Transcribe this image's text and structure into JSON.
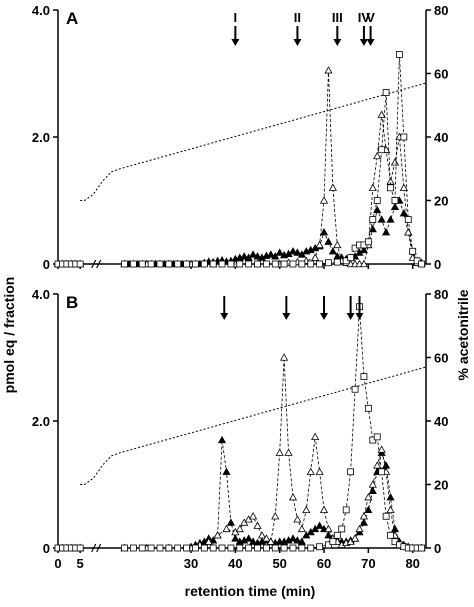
{
  "chart_data": {
    "type": "line",
    "xlabel": "retention time (min)",
    "ylabel_left": "pmol eq / fraction",
    "ylabel_right": "% acetonitrile",
    "x_ticks": [
      0,
      5,
      30,
      40,
      50,
      60,
      70,
      80
    ],
    "y_left_ticks": [
      0,
      2.0,
      4.0
    ],
    "y_left_tick_labels": [
      "0",
      "2.0",
      "4.0"
    ],
    "y_right_ticks": [
      0,
      20,
      40,
      60,
      80
    ],
    "xlim": [
      0,
      83
    ],
    "ylim_left": [
      0,
      4.0
    ],
    "ylim_right": [
      0,
      80
    ],
    "panels": [
      {
        "label": "A",
        "arrows": [
          {
            "x": 40,
            "label": "I"
          },
          {
            "x": 54,
            "label": "II"
          },
          {
            "x": 63,
            "label": "III"
          },
          {
            "x": 69,
            "label": "IV"
          },
          {
            "x": 70.5,
            "label": "V"
          }
        ],
        "series": [
          {
            "marker": "filled-triangle",
            "x": [
              0,
              1,
              2,
              3,
              4,
              5,
              15,
              16,
              17,
              18,
              19,
              20,
              21,
              22,
              23,
              24,
              25,
              26,
              27,
              28,
              29,
              30,
              31,
              32,
              33,
              34,
              35,
              36,
              37,
              38,
              39,
              40,
              41,
              42,
              43,
              44,
              45,
              46,
              47,
              48,
              49,
              50,
              51,
              52,
              53,
              54,
              55,
              56,
              57,
              58,
              59,
              60,
              61,
              62,
              63,
              64,
              65,
              66,
              67,
              68,
              69,
              70,
              71,
              72,
              73,
              74,
              75,
              76,
              77,
              78,
              79,
              80,
              81,
              82
            ],
            "y": [
              0,
              0,
              0,
              0,
              0,
              0,
              0,
              0,
              0,
              0,
              0,
              0,
              0,
              0,
              0,
              0,
              0,
              0,
              0,
              0,
              0,
              0,
              0,
              0,
              0.02,
              0.04,
              0.03,
              0.05,
              0.06,
              0.04,
              0.05,
              0.08,
              0.1,
              0.12,
              0.1,
              0.15,
              0.12,
              0.1,
              0.13,
              0.15,
              0.12,
              0.18,
              0.14,
              0.16,
              0.2,
              0.18,
              0.15,
              0.2,
              0.22,
              0.25,
              0.28,
              0.5,
              0.35,
              0.2,
              0.12,
              0.1,
              0.08,
              0.1,
              0.12,
              0.18,
              0.22,
              0.3,
              0.55,
              0.85,
              0.7,
              0.5,
              0.7,
              0.9,
              1.0,
              0.8,
              0.5,
              0.2,
              0.05,
              0.02
            ]
          },
          {
            "marker": "open-triangle",
            "x": [
              0,
              1,
              2,
              3,
              4,
              5,
              15,
              20,
              25,
              30,
              35,
              40,
              45,
              50,
              52,
              54,
              56,
              58,
              59,
              60,
              61,
              62,
              63,
              64,
              65,
              66,
              67,
              68,
              69,
              70,
              71,
              72,
              73,
              74,
              75,
              76,
              77,
              78,
              79,
              80,
              81,
              82
            ],
            "y": [
              0,
              0,
              0,
              0,
              0,
              0,
              0,
              0,
              0,
              0,
              0,
              0,
              0,
              0,
              0.02,
              0.03,
              0.05,
              0.1,
              0.3,
              1.0,
              3.05,
              1.2,
              0.3,
              0.05,
              0.02,
              0,
              0,
              0,
              0,
              0.3,
              1.2,
              1.7,
              2.35,
              1.8,
              1.3,
              1.6,
              2.0,
              1.2,
              0.5,
              0.1,
              0.02,
              0
            ]
          },
          {
            "marker": "open-square",
            "x": [
              0,
              1,
              2,
              3,
              4,
              5,
              15,
              17,
              19,
              21,
              23,
              25,
              27,
              29,
              31,
              33,
              35,
              37,
              39,
              41,
              43,
              45,
              47,
              49,
              51,
              53,
              55,
              57,
              59,
              61,
              63,
              65,
              66,
              67,
              68,
              69,
              70,
              71,
              72,
              73,
              74,
              75,
              76,
              77,
              78,
              79,
              80,
              81,
              82
            ],
            "y": [
              0,
              0,
              0,
              0,
              0,
              0,
              0,
              0,
              0,
              0,
              0,
              0,
              0,
              0,
              0,
              0,
              0,
              0,
              0,
              0,
              0,
              0,
              0,
              0,
              0,
              0,
              0,
              0,
              0,
              0.02,
              0.03,
              0.05,
              0.1,
              0.25,
              0.3,
              0.3,
              0.35,
              0.7,
              1.0,
              1.8,
              2.7,
              1.2,
              1.0,
              3.3,
              2.0,
              0.7,
              0.2,
              0.05,
              0
            ]
          }
        ]
      },
      {
        "label": "B",
        "arrows": [
          {
            "x": 37.5
          },
          {
            "x": 51.5
          },
          {
            "x": 60
          },
          {
            "x": 66
          },
          {
            "x": 68
          }
        ],
        "series": [
          {
            "marker": "filled-triangle",
            "x": [
              0,
              1,
              2,
              3,
              4,
              5,
              15,
              20,
              25,
              30,
              31,
              32,
              33,
              34,
              35,
              36,
              37,
              38,
              39,
              40,
              41,
              42,
              43,
              44,
              45,
              46,
              47,
              48,
              49,
              50,
              51,
              52,
              53,
              54,
              55,
              56,
              57,
              58,
              59,
              60,
              61,
              62,
              63,
              64,
              65,
              66,
              67,
              68,
              69,
              70,
              71,
              72,
              73,
              74,
              75,
              76,
              77,
              78,
              79,
              80,
              81,
              82
            ],
            "y": [
              0,
              0,
              0,
              0,
              0,
              0,
              0,
              0,
              0,
              0.02,
              0.05,
              0.08,
              0.1,
              0.15,
              0.12,
              0.2,
              1.7,
              1.2,
              0.4,
              0.15,
              0.1,
              0.12,
              0.15,
              0.1,
              0.08,
              0.1,
              0.12,
              0.1,
              0.08,
              0.1,
              0.1,
              0.12,
              0.15,
              0.12,
              0.1,
              0.2,
              0.25,
              0.3,
              0.35,
              0.3,
              0.2,
              0.15,
              0.12,
              0.1,
              0.1,
              0.12,
              0.15,
              0.25,
              0.4,
              0.6,
              0.9,
              1.2,
              1.5,
              1.3,
              0.8,
              0.3,
              0.1,
              0.05,
              0.02,
              0,
              0,
              0
            ]
          },
          {
            "marker": "open-triangle",
            "x": [
              0,
              1,
              2,
              3,
              4,
              5,
              15,
              20,
              25,
              30,
              32,
              34,
              36,
              38,
              40,
              41,
              42,
              43,
              44,
              45,
              46,
              47,
              48,
              49,
              50,
              51,
              52,
              53,
              54,
              55,
              56,
              57,
              58,
              59,
              60,
              61,
              62,
              63,
              64,
              65,
              66,
              67,
              68,
              69,
              70,
              71,
              72,
              73,
              74,
              75,
              76,
              77,
              78,
              80,
              82
            ],
            "y": [
              0,
              0,
              0,
              0,
              0,
              0,
              0,
              0,
              0,
              0,
              0.05,
              0.1,
              0.2,
              0.3,
              0.25,
              0.3,
              0.4,
              0.45,
              0.5,
              0.35,
              0.2,
              0.15,
              0.1,
              0.5,
              1.5,
              3.0,
              1.5,
              0.8,
              0.45,
              0.3,
              0.6,
              1.2,
              1.75,
              1.2,
              0.6,
              0.3,
              0.15,
              0.1,
              0.05,
              0.08,
              0.1,
              0.15,
              0.3,
              0.5,
              0.8,
              1.0,
              1.3,
              1.55,
              1.2,
              0.6,
              0.2,
              0.05,
              0.02,
              0,
              0
            ]
          },
          {
            "marker": "open-square",
            "x": [
              0,
              1,
              2,
              3,
              4,
              5,
              15,
              17,
              19,
              21,
              23,
              25,
              27,
              29,
              31,
              33,
              35,
              37,
              39,
              41,
              43,
              45,
              47,
              49,
              51,
              53,
              55,
              57,
              59,
              61,
              62,
              63,
              64,
              65,
              66,
              67,
              68,
              69,
              70,
              71,
              72,
              73,
              74,
              75,
              76,
              77,
              78,
              79,
              80,
              81,
              82
            ],
            "y": [
              0,
              0,
              0,
              0,
              0,
              0,
              0,
              0,
              0,
              0,
              0,
              0,
              0,
              0,
              0,
              0,
              0,
              0,
              0,
              0,
              0,
              0,
              0,
              0,
              0,
              0,
              0,
              0,
              0.02,
              0.05,
              0.1,
              0.2,
              0.3,
              0.6,
              1.2,
              2.5,
              3.8,
              2.7,
              2.2,
              1.7,
              1.75,
              1.2,
              0.5,
              0.2,
              0.1,
              0.05,
              0.02,
              0,
              0,
              0,
              0
            ]
          }
        ]
      }
    ],
    "acetonitrile_gradient": {
      "style": "dotted",
      "x": [
        5,
        6,
        7,
        8,
        9,
        10,
        12,
        14,
        83
      ],
      "y": [
        20,
        20,
        21,
        22,
        24,
        26,
        29,
        30,
        57
      ]
    }
  }
}
